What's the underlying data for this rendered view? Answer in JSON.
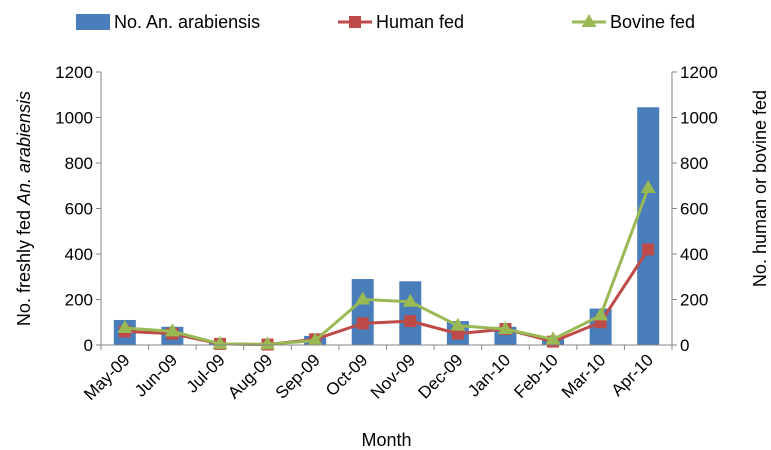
{
  "chart_data": {
    "type": "bar",
    "categories": [
      "May-09",
      "Jun-09",
      "Jul-09",
      "Aug-09",
      "Sep-09",
      "Oct-09",
      "Nov-09",
      "Dec-09",
      "Jan-10",
      "Feb-10",
      "Mar-10",
      "Apr-10"
    ],
    "series": [
      {
        "name": "No. An. arabiensis",
        "type": "bar",
        "axis": "left",
        "color": "#4A7EBB",
        "values": [
          110,
          80,
          10,
          5,
          40,
          290,
          280,
          105,
          80,
          30,
          160,
          1045
        ]
      },
      {
        "name": "Human fed",
        "type": "line",
        "axis": "right",
        "color": "#BE4B48",
        "marker": "square",
        "values": [
          60,
          50,
          5,
          2,
          25,
          95,
          105,
          50,
          70,
          15,
          100,
          420
        ]
      },
      {
        "name": "Bovine fed",
        "type": "line",
        "axis": "right",
        "color": "#98B954",
        "marker": "triangle",
        "values": [
          75,
          60,
          5,
          3,
          20,
          200,
          190,
          85,
          70,
          25,
          130,
          690
        ]
      }
    ],
    "xlabel": "Month",
    "ylabel_left": {
      "prefix": "No. freshly fed ",
      "italic": "An. arabiensis"
    },
    "ylabel_right": "No. human or bovine fed",
    "ylim_left": [
      0,
      1200
    ],
    "ylim_right": [
      0,
      1200
    ],
    "yticks": [
      0,
      200,
      400,
      600,
      800,
      1000,
      1200
    ],
    "grid": false,
    "legend_position": "top"
  }
}
